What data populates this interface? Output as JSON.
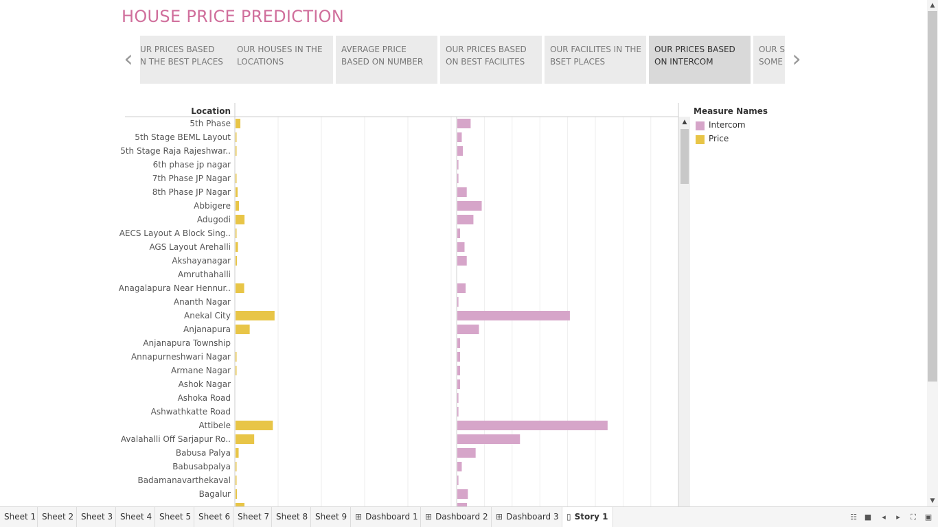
{
  "title": "HOUSE PRICE PREDICTION",
  "story_nav": {
    "prev_icon": "chevron-left-icon",
    "next_icon": "chevron-right-icon",
    "points": [
      {
        "label": "UR PRICES BASED\nN THE BEST PLACES",
        "active": false
      },
      {
        "label": "OUR HOUSES IN THE\nLOCATIONS",
        "active": false
      },
      {
        "label": "AVERAGE PRICE\nBASED ON NUMBER",
        "active": false
      },
      {
        "label": "OUR PRICES BASED\nON BEST FACILITES",
        "active": false
      },
      {
        "label": "OUR FACILITES IN THE\nBSET PLACES",
        "active": false
      },
      {
        "label": "OUR PRICES BASED\nON INTERCOM",
        "active": true
      },
      {
        "label": "OUR SI\nSOME",
        "active": false
      }
    ]
  },
  "chart_data": {
    "type": "bar",
    "orientation": "horizontal",
    "row_header": "Location",
    "colors": {
      "Price": "#e8c547",
      "Intercom": "#d6a5c9"
    },
    "categories": [
      "5th Phase",
      "5th Stage BEML Layout",
      "5th Stage Raja Rajeshwar..",
      "6th phase jp nagar",
      "7th Phase JP Nagar",
      "8th Phase JP Nagar",
      "Abbigere",
      "Adugodi",
      "AECS Layout A Block Sing..",
      "AGS Layout Arehalli",
      "Akshayanagar",
      "Amruthahalli",
      "Anagalapura Near Hennur..",
      "Ananth Nagar",
      "Anekal City",
      "Anjanapura",
      "Anjanapura Township",
      "Annapurneshwari Nagar",
      "Armane Nagar",
      "Ashok Nagar",
      "Ashoka Road",
      "Ashwathkatte Road",
      "Attibele",
      "Avalahalli Off Sarjapur Ro..",
      "Babusa Palya",
      "Babusabpalya",
      "Badamanavarthekaval",
      "Bagalur"
    ],
    "series": [
      {
        "name": "Price",
        "values": [
          14,
          2,
          2,
          0,
          1,
          6,
          10,
          26,
          1,
          7,
          4,
          0,
          25,
          0,
          113,
          41,
          0,
          1,
          2,
          0,
          0,
          0,
          108,
          54,
          9,
          1,
          1,
          4
        ]
      },
      {
        "name": "Intercom",
        "values": [
          24,
          8,
          10,
          2,
          2,
          17,
          44,
          29,
          5,
          13,
          17,
          0,
          15,
          2,
          203,
          39,
          5,
          5,
          5,
          5,
          2,
          2,
          271,
          113,
          33,
          8,
          2,
          19
        ]
      }
    ],
    "price_domain": [
      0,
      640
    ],
    "intercom_domain": [
      0,
      400
    ],
    "legend": {
      "title": "Measure Names",
      "placement": "right",
      "entries": [
        "Intercom",
        "Price"
      ]
    },
    "grid": true
  },
  "tabs": [
    {
      "label": "Sheet 1",
      "icon": "",
      "active": false
    },
    {
      "label": "Sheet 2",
      "icon": "",
      "active": false
    },
    {
      "label": "Sheet 3",
      "icon": "",
      "active": false
    },
    {
      "label": "Sheet 4",
      "icon": "",
      "active": false
    },
    {
      "label": "Sheet 5",
      "icon": "",
      "active": false
    },
    {
      "label": "Sheet 6",
      "icon": "",
      "active": false
    },
    {
      "label": "Sheet 7",
      "icon": "",
      "active": false
    },
    {
      "label": "Sheet 8",
      "icon": "",
      "active": false
    },
    {
      "label": "Sheet 9",
      "icon": "",
      "active": false
    },
    {
      "label": "Dashboard 1",
      "icon": "dashboard-icon",
      "active": false
    },
    {
      "label": "Dashboard 2",
      "icon": "dashboard-icon",
      "active": false
    },
    {
      "label": "Dashboard 3",
      "icon": "dashboard-icon",
      "active": false
    },
    {
      "label": "Story 1",
      "icon": "story-icon",
      "active": true
    }
  ],
  "controls": [
    "sheet-sorter-icon",
    "filmstrip-icon",
    "previous-sheet-icon",
    "next-sheet-icon",
    "presentation-mode-icon",
    "device-preview-icon"
  ]
}
